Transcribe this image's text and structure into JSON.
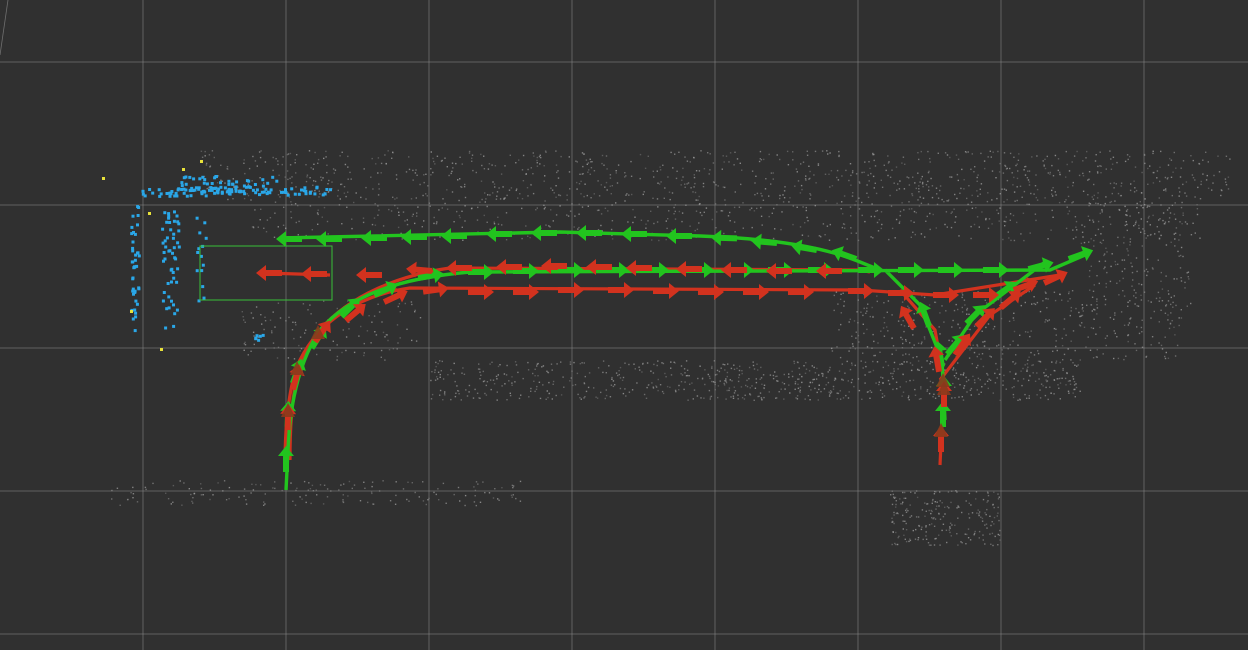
{
  "viewport": {
    "kind": "3d-map-view",
    "background_color": "#303030",
    "grid_color": "#8a8a8a",
    "cloud_color": "#9a9a9a",
    "obstacle_color": "#2aa7e8",
    "obstacle_highlight_color": "#e8e23a",
    "selection_box_color": "#38c038",
    "path_green_color": "#22c41e",
    "path_red_color": "#d2321e",
    "marker_color": "#8a3a1c",
    "pose_arrow_icon": "arrow-icon"
  }
}
